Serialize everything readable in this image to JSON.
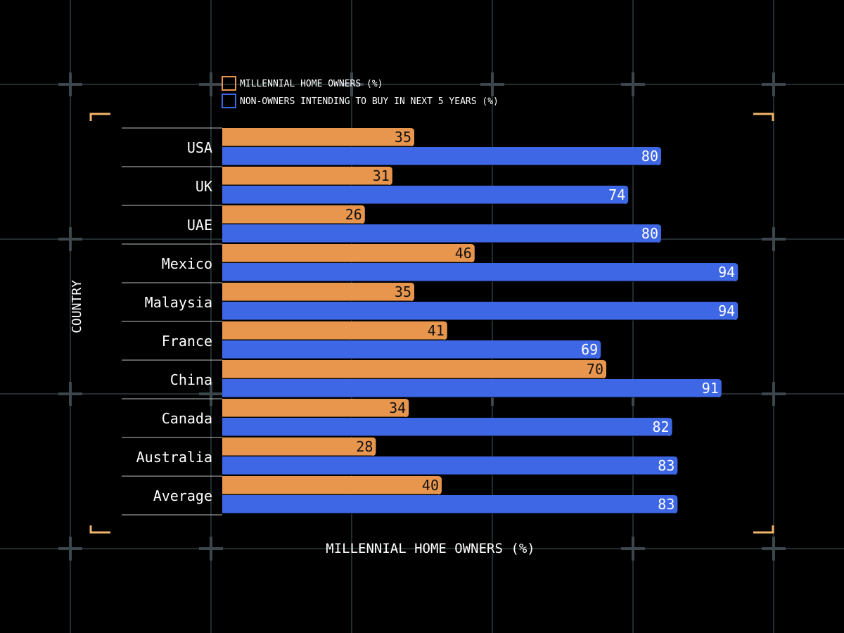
{
  "chart_data": {
    "type": "bar",
    "orientation": "horizontal",
    "title": "",
    "xlabel": "MILLENNIAL HOME OWNERS (%)",
    "ylabel": "COUNTRY",
    "xlim": [
      0,
      100
    ],
    "grid": true,
    "legend_position": "top-left",
    "categories": [
      "USA",
      "UK",
      "UAE",
      "Mexico",
      "Malaysia",
      "France",
      "China",
      "Canada",
      "Australia",
      "Average"
    ],
    "series": [
      {
        "name": "MILLENNIAL HOME OWNERS (%)",
        "color": "#e8964e",
        "values": [
          35,
          31,
          26,
          46,
          35,
          41,
          70,
          34,
          28,
          40
        ]
      },
      {
        "name": "NON-OWNERS INTENDING TO BUY IN NEXT 5 YEARS (%)",
        "color": "#3e67e6",
        "values": [
          80,
          74,
          80,
          94,
          94,
          69,
          91,
          82,
          83,
          83
        ]
      }
    ]
  },
  "colors": {
    "background": "#000000",
    "grid": "#2f3a3f",
    "crosshair": "#3c474d",
    "corner_accent": "#f0b46a",
    "text": "#ffffff",
    "separator": "#b9bfc2"
  }
}
